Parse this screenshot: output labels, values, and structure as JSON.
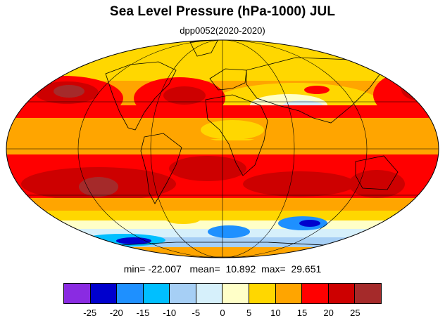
{
  "title": "Sea Level Pressure (hPa-1000) JUL",
  "subtitle": "dpp0052(2020-2020)",
  "stats": {
    "min_label": "min=",
    "min_value": "-22.007",
    "mean_label": "mean=",
    "mean_value": "10.892",
    "max_label": "max=",
    "max_value": "29.651"
  },
  "colorbar": {
    "ticks": [
      "-25",
      "-20",
      "-15",
      "-10",
      "-5",
      "0",
      "5",
      "10",
      "15",
      "20",
      "25"
    ],
    "colors": [
      "#8a2be2",
      "#0000cd",
      "#1e90ff",
      "#00bfff",
      "#a6cff5",
      "#d6f0fb",
      "#ffffc8",
      "#ffd700",
      "#ffa500",
      "#ff0000",
      "#cd0000",
      "#a52a2a"
    ]
  },
  "map": {
    "projection": "Mollweide",
    "ocean_color": "#ffa500",
    "land_outline_color": "#000000"
  }
}
